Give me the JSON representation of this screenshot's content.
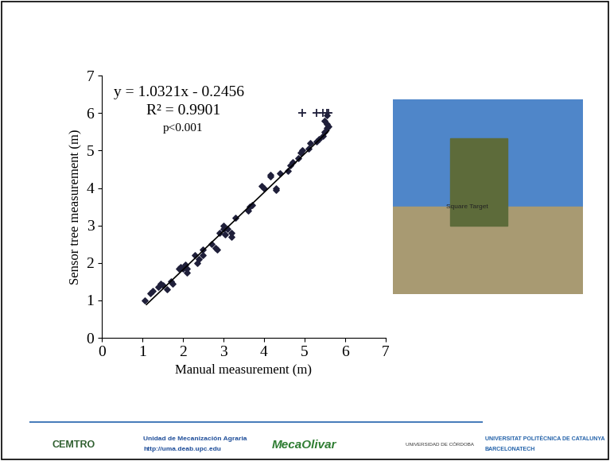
{
  "chart_data": {
    "type": "scatter",
    "x_label": "Manual measurement (m)",
    "y_label": "Sensor tree measurement (m)",
    "annotations": [
      "y = 1.0321x - 0.2456",
      "R² = 0.9901",
      "p<0.001"
    ],
    "series": [
      {
        "type": "scatter",
        "marker": "diamond",
        "color": "#1f1f3a",
        "x": [
          1.05,
          1.2,
          1.25,
          1.4,
          1.45,
          1.5,
          1.6,
          1.7,
          1.75,
          1.9,
          1.95,
          2.0,
          2.05,
          2.1,
          2.1,
          2.3,
          2.35,
          2.4,
          2.5,
          2.5,
          2.7,
          2.8,
          2.85,
          2.9,
          3.0,
          3.0,
          3.05,
          3.1,
          3.2,
          3.2,
          3.3,
          3.6,
          3.65,
          3.7,
          3.95,
          4.0,
          4.15,
          4.15,
          4.3,
          4.3,
          4.4,
          4.6,
          4.65,
          4.7,
          4.85,
          4.9,
          4.95,
          5.1,
          5.15,
          5.3,
          5.35,
          5.45,
          5.5,
          5.55,
          5.55,
          5.6,
          5.5,
          5.55
        ],
        "values": [
          1.0,
          1.2,
          1.25,
          1.35,
          1.45,
          1.4,
          1.3,
          1.5,
          1.45,
          1.85,
          1.9,
          1.85,
          1.95,
          1.75,
          1.85,
          2.2,
          2.0,
          2.1,
          2.35,
          2.2,
          2.5,
          2.4,
          2.35,
          2.8,
          3.0,
          2.9,
          2.75,
          2.9,
          2.7,
          2.8,
          3.2,
          3.4,
          3.5,
          3.55,
          4.05,
          4.0,
          4.3,
          4.35,
          4.0,
          3.95,
          4.4,
          4.45,
          4.6,
          4.7,
          4.8,
          4.95,
          5.0,
          5.05,
          5.2,
          5.25,
          5.3,
          5.4,
          5.5,
          5.6,
          5.7,
          5.65,
          5.8,
          5.95
        ]
      },
      {
        "type": "scatter",
        "marker": "plus",
        "color": "#1f1f3a",
        "x": [
          4.95,
          5.3,
          5.45,
          5.55,
          5.6
        ],
        "values": [
          6.0,
          6.0,
          6.0,
          6.0,
          6.0
        ]
      },
      {
        "type": "line",
        "line_style": "solid",
        "color": "#000000",
        "x": [
          1.1,
          5.6
        ],
        "values": [
          0.89,
          5.53
        ]
      }
    ],
    "xlim": [
      0,
      7
    ],
    "ylim": [
      0,
      7
    ],
    "xticks": [
      0,
      1,
      2,
      3,
      4,
      5,
      6,
      7
    ],
    "yticks": [
      0,
      1,
      2,
      3,
      4,
      5,
      6,
      7
    ],
    "grid": false
  },
  "photo": {
    "label": "Square Target"
  },
  "footer": [
    "CEMTRO",
    "Unidad de Mecanización Agraria",
    "http://uma.deab.upc.edu",
    "MecaOlivar",
    "UNIVERSIDAD DE CÓRDOBA",
    "UNIVERSITAT POLITÈCNICA DE CATALUNYA",
    "BARCELONATECH"
  ]
}
